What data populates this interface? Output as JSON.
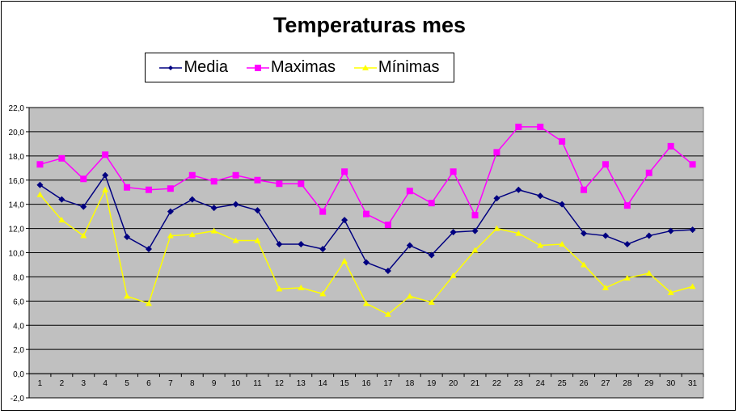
{
  "chart_data": {
    "type": "line",
    "title": "Temperaturas mes",
    "xlabel": "",
    "ylabel": "",
    "ylim": [
      -2.0,
      22.0
    ],
    "ytick_step": 2.0,
    "ytick_labels": [
      "-2,0",
      "0,0",
      "2,0",
      "4,0",
      "6,0",
      "8,0",
      "10,0",
      "12,0",
      "14,0",
      "16,0",
      "18,0",
      "20,0",
      "22,0"
    ],
    "grid": true,
    "legend_position": "top",
    "x": [
      1,
      2,
      3,
      4,
      5,
      6,
      7,
      8,
      9,
      10,
      11,
      12,
      13,
      14,
      15,
      16,
      17,
      18,
      19,
      20,
      21,
      22,
      23,
      24,
      25,
      26,
      27,
      28,
      29,
      30,
      31
    ],
    "series": [
      {
        "name": "Media",
        "color": "#000080",
        "marker": "diamond",
        "values": [
          15.6,
          14.4,
          13.8,
          16.4,
          11.3,
          10.3,
          13.4,
          14.4,
          13.7,
          14.0,
          13.5,
          10.7,
          10.7,
          10.3,
          12.7,
          9.2,
          8.5,
          10.6,
          9.8,
          11.7,
          11.8,
          14.5,
          15.2,
          14.7,
          14.0,
          11.6,
          11.4,
          10.7,
          11.4,
          11.8,
          11.9
        ]
      },
      {
        "name": "Maximas",
        "color": "#FF00FF",
        "marker": "square",
        "values": [
          17.3,
          17.8,
          16.1,
          18.1,
          15.4,
          15.2,
          15.3,
          16.4,
          15.9,
          16.4,
          16.0,
          15.7,
          15.7,
          13.4,
          16.7,
          13.2,
          12.3,
          15.1,
          14.1,
          16.7,
          13.1,
          18.3,
          20.4,
          20.4,
          19.2,
          15.2,
          17.3,
          13.9,
          16.6,
          18.8,
          17.3
        ]
      },
      {
        "name": "Mínimas",
        "color": "#FFFF00",
        "marker": "triangle",
        "values": [
          14.8,
          12.7,
          11.4,
          15.2,
          6.4,
          5.8,
          11.4,
          11.5,
          11.8,
          11.0,
          11.0,
          7.0,
          7.1,
          6.6,
          9.3,
          5.8,
          4.9,
          6.4,
          5.9,
          8.1,
          10.2,
          12.0,
          11.6,
          10.6,
          10.7,
          9.0,
          7.1,
          7.9,
          8.3,
          6.7,
          7.2
        ]
      }
    ],
    "plot_background": "#C0C0C0"
  }
}
